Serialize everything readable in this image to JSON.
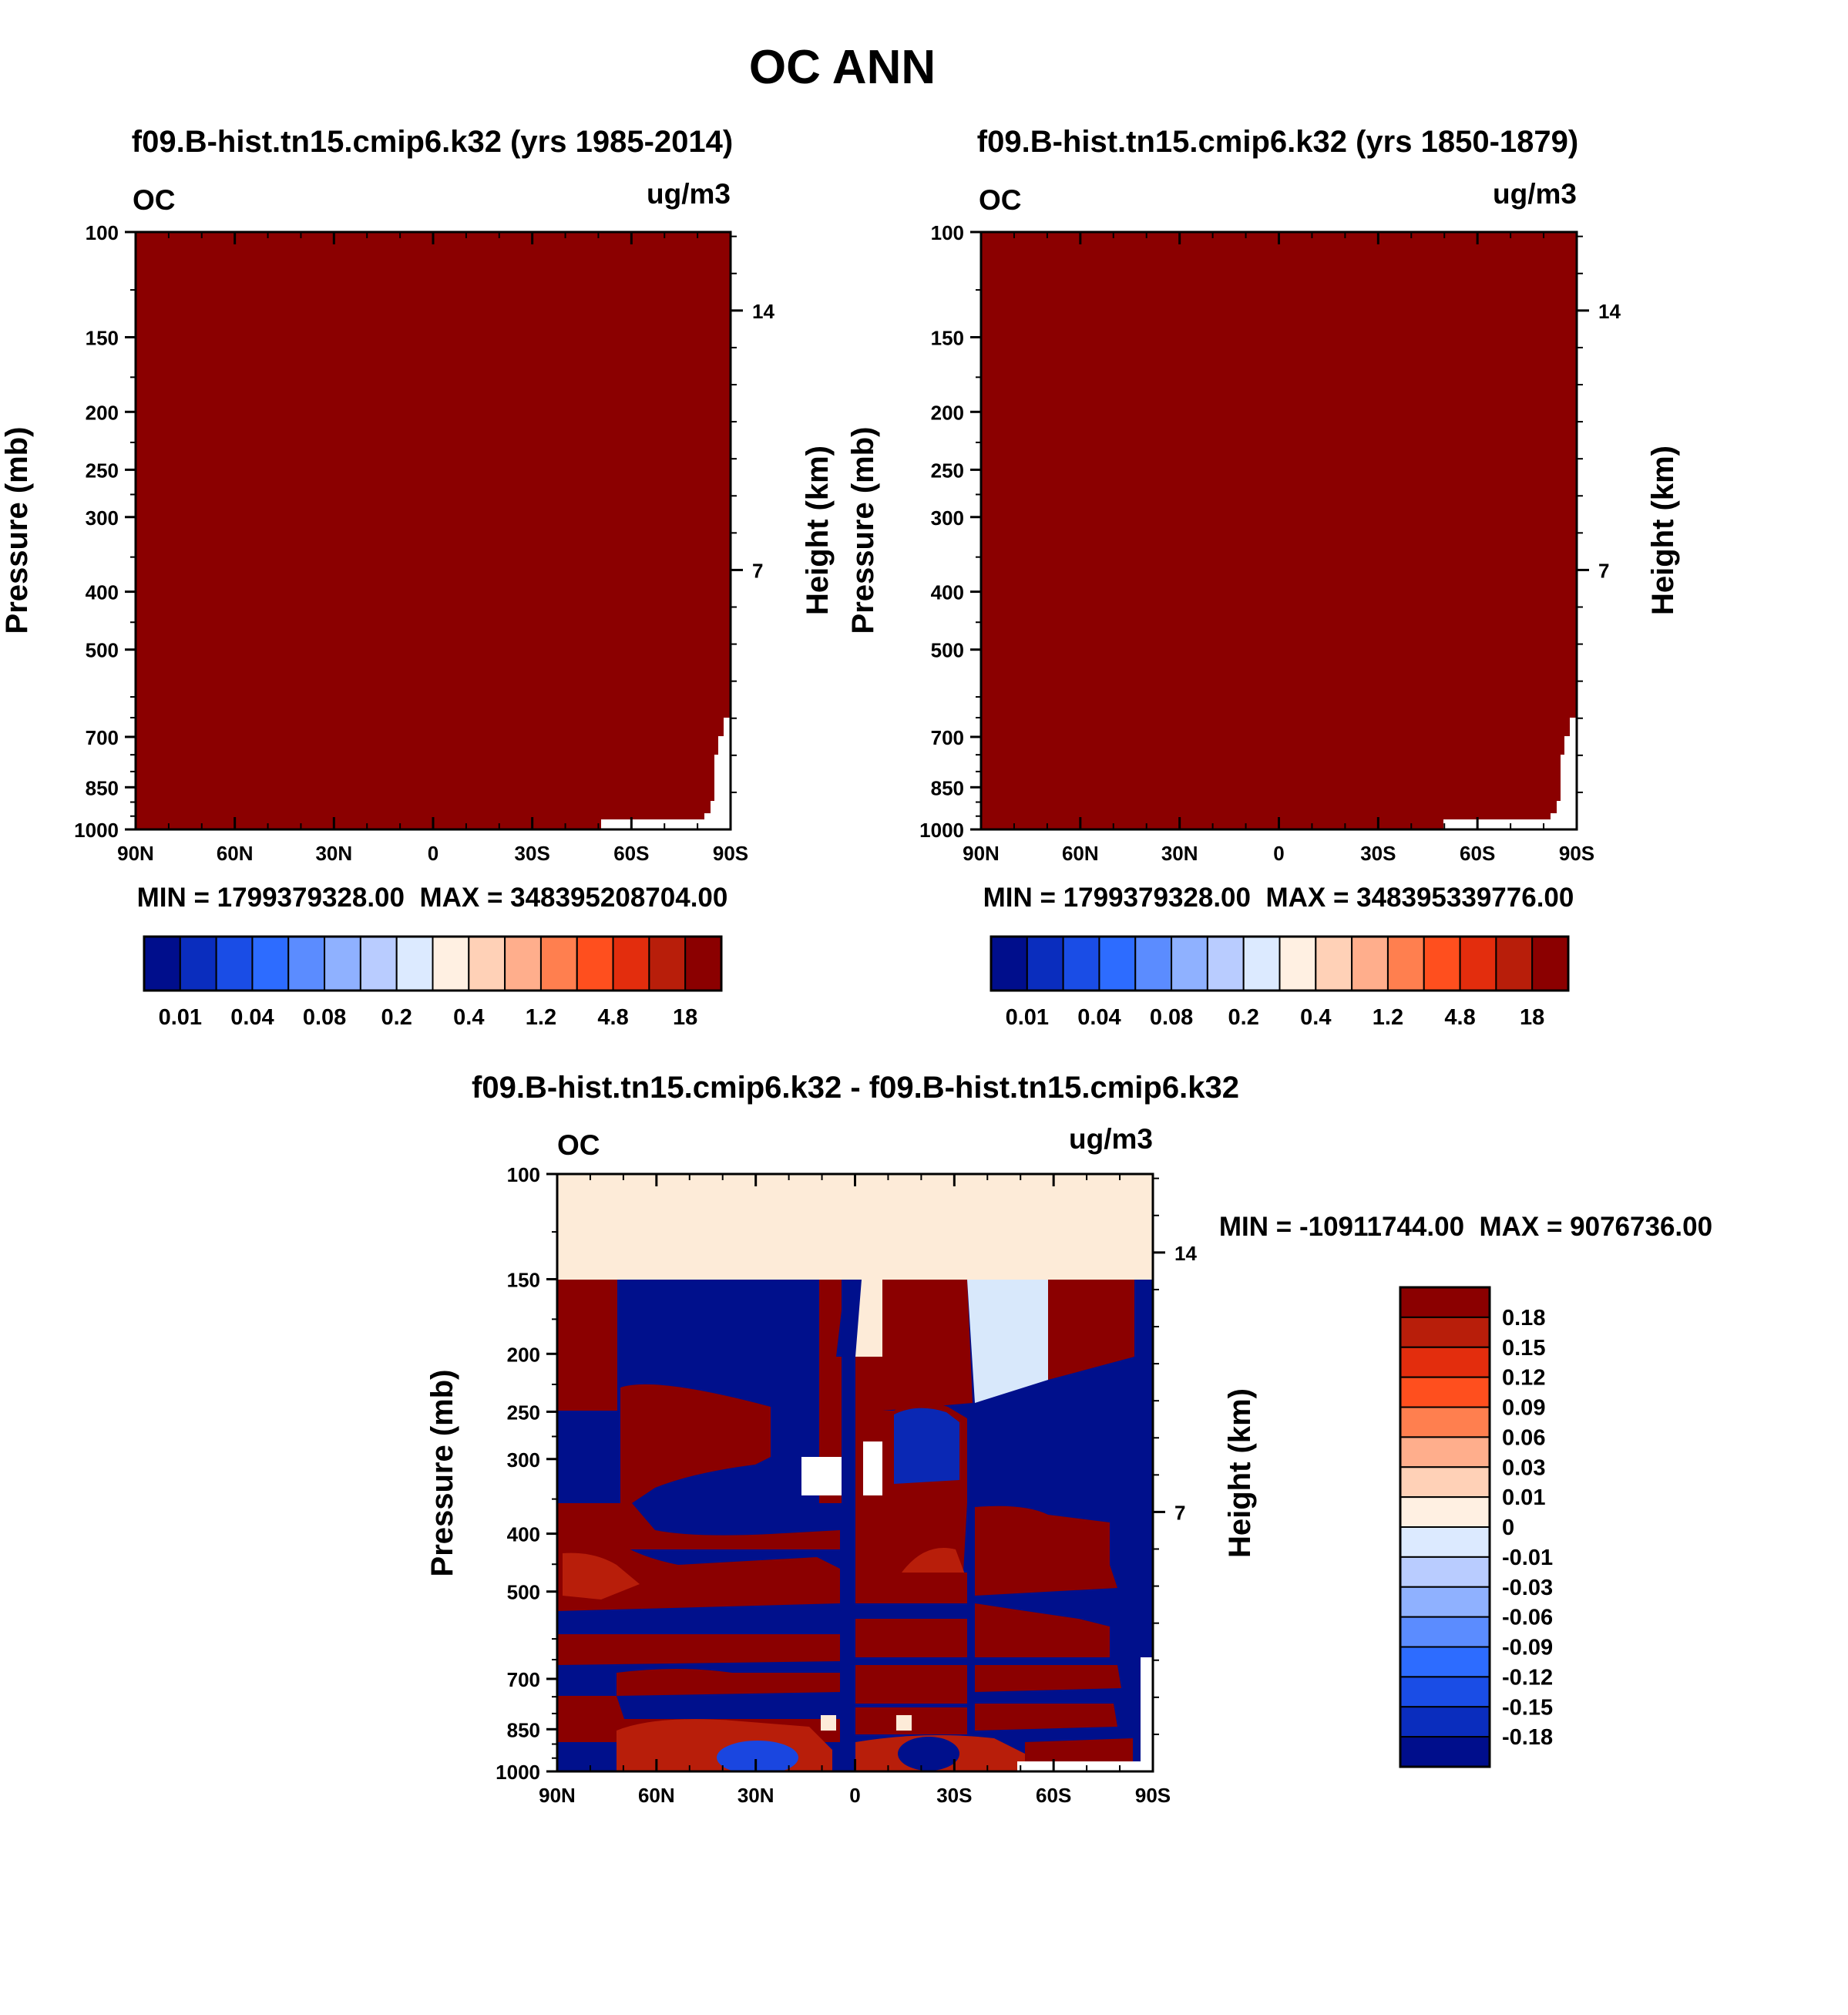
{
  "page": {
    "title": "OC ANN"
  },
  "colors": {
    "seq_palette": [
      "#000e8c",
      "#0a2dbe",
      "#1a4de6",
      "#2d6cff",
      "#5b8cff",
      "#8fb1ff",
      "#b9ccff",
      "#dceaff",
      "#fff0e2",
      "#ffd1b7",
      "#ffae8c",
      "#ff7f4f",
      "#ff4f1e",
      "#e32d0d",
      "#b81e0a",
      "#8b0000"
    ],
    "diff_palette": [
      "#000e8c",
      "#0a2dbe",
      "#1a4de6",
      "#2d6cff",
      "#5b8cff",
      "#8fb1ff",
      "#b9ccff",
      "#dceaff",
      "#fff0e2",
      "#ffd1b7",
      "#ffae8c",
      "#ff7f4f",
      "#ff4f1e",
      "#e32d0d",
      "#b81e0a",
      "#8b0000"
    ],
    "field_max": "#8b0000",
    "diff_top_band": "#fdebd8"
  },
  "chart_data": [
    {
      "type": "heatmap",
      "title": "f09.B-hist.tn15.cmip6.k32 (yrs 1985-2014)",
      "variable": "OC",
      "units": "ug/m3",
      "ylabel": "Pressure (mb)",
      "ylabel_right": "Height (km)",
      "x_ticks": [
        "90N",
        "60N",
        "30N",
        "0",
        "30S",
        "60S",
        "90S"
      ],
      "y_ticks": [
        100,
        150,
        200,
        250,
        300,
        400,
        500,
        700,
        850,
        1000
      ],
      "right_ticks": [
        14,
        7
      ],
      "ylim": [
        1000,
        100
      ],
      "min": "1799379328.00",
      "max": "348395208704.00",
      "stats_label": "MIN = 1799379328.00  MAX = 348395208704.00",
      "field": "all values above 18 ug/m3 (top colour class)",
      "colorbar_labels": [
        "0.01",
        "0.04",
        "0.08",
        "0.2",
        "0.4",
        "1.2",
        "4.8",
        "18"
      ]
    },
    {
      "type": "heatmap",
      "title": "f09.B-hist.tn15.cmip6.k32 (yrs 1850-1879)",
      "variable": "OC",
      "units": "ug/m3",
      "ylabel": "Pressure (mb)",
      "ylabel_right": "Height (km)",
      "x_ticks": [
        "90N",
        "60N",
        "30N",
        "0",
        "30S",
        "60S",
        "90S"
      ],
      "y_ticks": [
        100,
        150,
        200,
        250,
        300,
        400,
        500,
        700,
        850,
        1000
      ],
      "right_ticks": [
        14,
        7
      ],
      "ylim": [
        1000,
        100
      ],
      "min": "1799379328.00",
      "max": "348395339776.00",
      "stats_label": "MIN = 1799379328.00  MAX = 348395339776.00",
      "field": "all values above 18 ug/m3 (top colour class)",
      "colorbar_labels": [
        "0.01",
        "0.04",
        "0.08",
        "0.2",
        "0.4",
        "1.2",
        "4.8",
        "18"
      ]
    },
    {
      "type": "heatmap",
      "title": "f09.B-hist.tn15.cmip6.k32 - f09.B-hist.tn15.cmip6.k32",
      "variable": "OC",
      "units": "ug/m3",
      "ylabel": "Pressure (mb)",
      "ylabel_right": "Height (km)",
      "x_ticks": [
        "90N",
        "60N",
        "30N",
        "0",
        "30S",
        "60S",
        "90S"
      ],
      "y_ticks": [
        100,
        150,
        200,
        250,
        300,
        400,
        500,
        700,
        850,
        1000
      ],
      "right_ticks": [
        14,
        7
      ],
      "ylim": [
        1000,
        100
      ],
      "min": "-10911744.00",
      "max": "9076736.00",
      "stats_label": "MIN = -10911744.00  MAX = 9076736.00",
      "colorbar_labels": [
        "0.18",
        "0.15",
        "0.12",
        "0.09",
        "0.06",
        "0.03",
        "0.01",
        "0",
        "-0.01",
        "-0.03",
        "-0.06",
        "-0.09",
        "-0.12",
        "-0.15",
        "-0.18"
      ]
    }
  ]
}
